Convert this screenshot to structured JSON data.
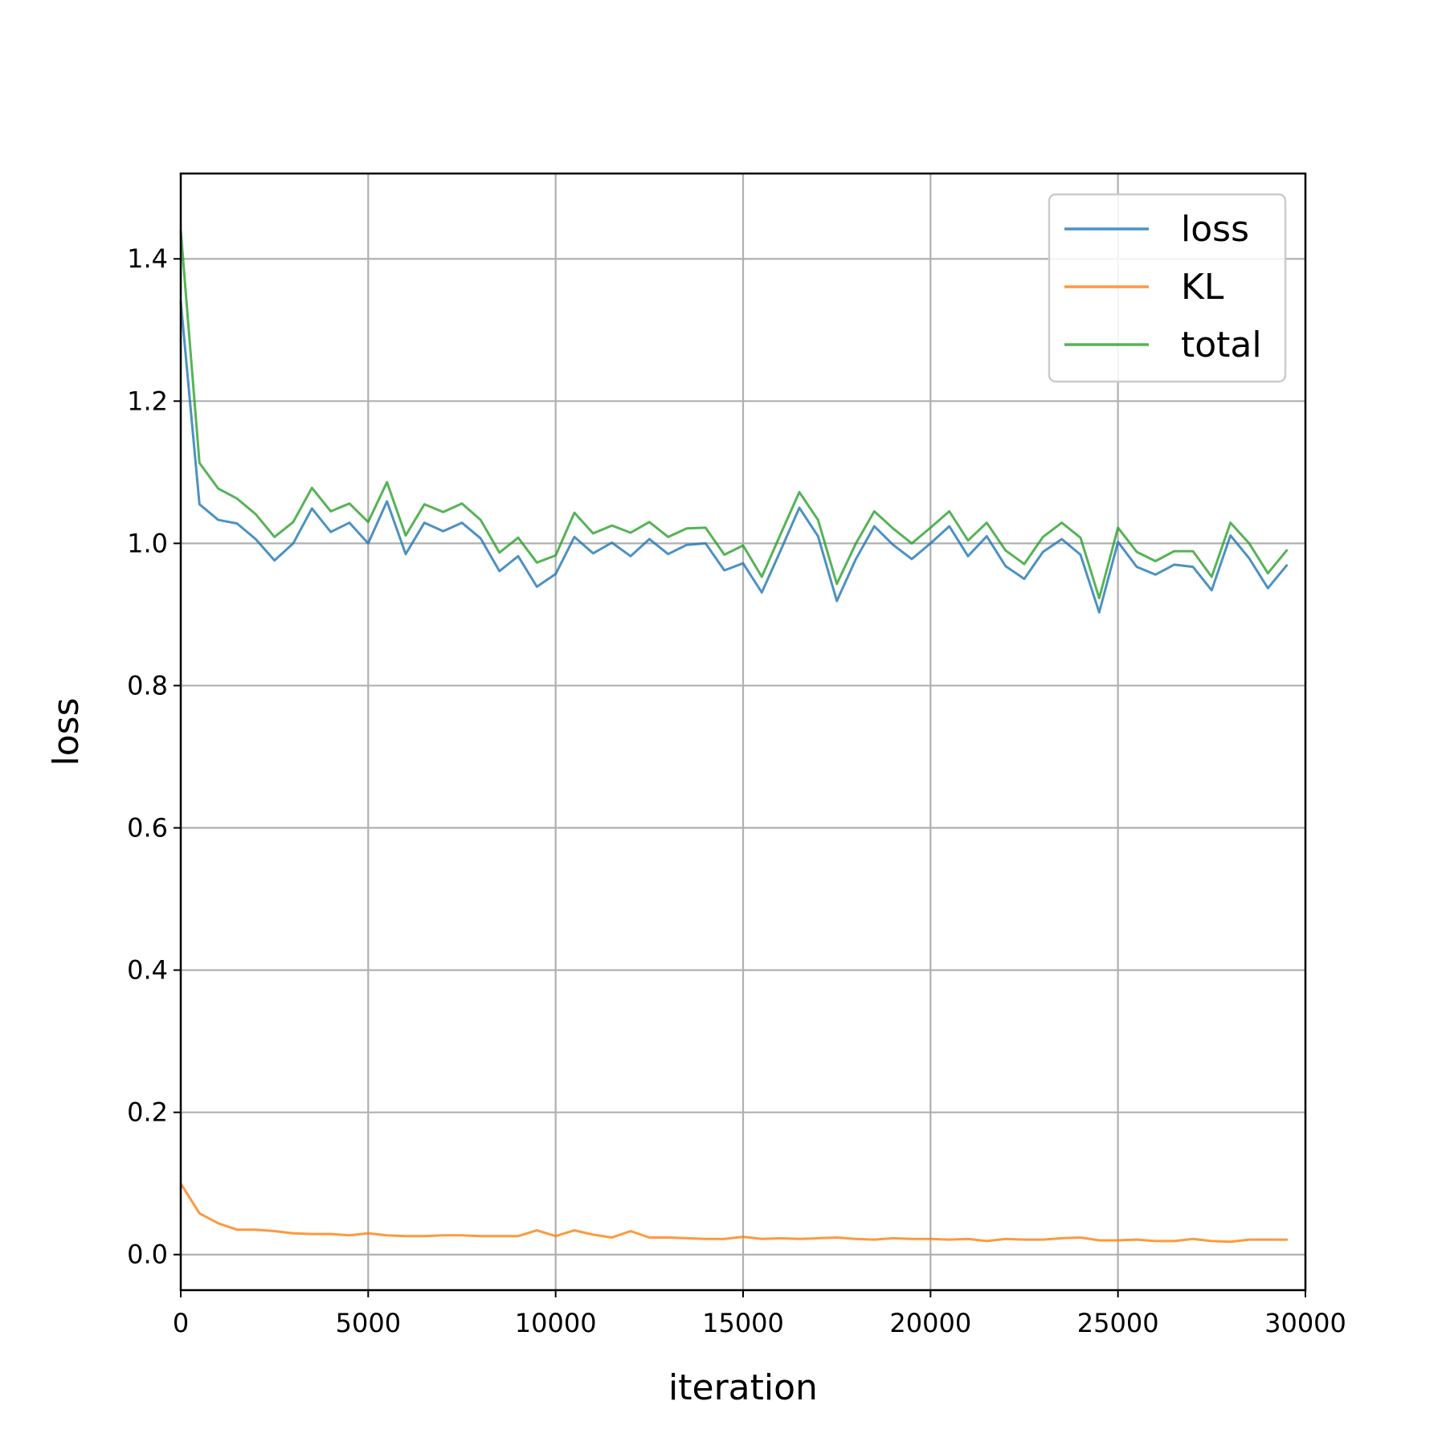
{
  "chart_data": {
    "type": "line",
    "title": "",
    "xlabel": "iteration",
    "ylabel": "loss",
    "xlim": [
      0,
      30000
    ],
    "ylim": [
      -0.05,
      1.52
    ],
    "xticks": [
      0,
      5000,
      10000,
      15000,
      20000,
      25000,
      30000
    ],
    "xtick_labels": [
      "0",
      "5000",
      "10000",
      "15000",
      "20000",
      "25000",
      "30000"
    ],
    "yticks": [
      0.0,
      0.2,
      0.4,
      0.6,
      0.8,
      1.0,
      1.2,
      1.4
    ],
    "ytick_labels": [
      "0.0",
      "0.2",
      "0.4",
      "0.6",
      "0.8",
      "1.0",
      "1.2",
      "1.4"
    ],
    "grid": true,
    "legend_position": "top-right",
    "x": [
      0,
      500,
      1000,
      1500,
      2000,
      2500,
      3000,
      3500,
      4000,
      4500,
      5000,
      5500,
      6000,
      6500,
      7000,
      7500,
      8000,
      8500,
      9000,
      9500,
      10000,
      10500,
      11000,
      11500,
      12000,
      12500,
      13000,
      13500,
      14000,
      14500,
      15000,
      15500,
      16000,
      16500,
      17000,
      17500,
      18000,
      18500,
      19000,
      19500,
      20000,
      20500,
      21000,
      21500,
      22000,
      22500,
      23000,
      23500,
      24000,
      24500,
      25000,
      25500,
      26000,
      26500,
      27000,
      27500,
      28000,
      28500,
      29000,
      29500
    ],
    "series": [
      {
        "name": "loss",
        "color": "#1f77b4",
        "values": [
          1.34,
          1.055,
          1.033,
          1.028,
          1.006,
          0.976,
          1.0,
          1.049,
          1.016,
          1.029,
          1.0,
          1.059,
          0.985,
          1.029,
          1.017,
          1.029,
          1.007,
          0.961,
          0.982,
          0.939,
          0.957,
          1.009,
          0.986,
          1.001,
          0.982,
          1.006,
          0.985,
          0.998,
          1.0,
          0.962,
          0.972,
          0.931,
          0.99,
          1.05,
          1.01,
          0.919,
          0.977,
          1.024,
          0.998,
          0.978,
          1.0,
          1.024,
          0.982,
          1.01,
          0.968,
          0.95,
          0.988,
          1.006,
          0.984,
          0.903,
          1.002,
          0.967,
          0.956,
          0.97,
          0.967,
          0.934,
          1.011,
          0.979,
          0.937,
          0.969
        ]
      },
      {
        "name": "KL",
        "color": "#ff7f0e",
        "values": [
          0.1,
          0.058,
          0.044,
          0.035,
          0.035,
          0.033,
          0.03,
          0.029,
          0.029,
          0.027,
          0.03,
          0.027,
          0.026,
          0.026,
          0.027,
          0.027,
          0.026,
          0.026,
          0.026,
          0.034,
          0.026,
          0.034,
          0.028,
          0.024,
          0.033,
          0.024,
          0.024,
          0.023,
          0.022,
          0.022,
          0.025,
          0.022,
          0.023,
          0.022,
          0.023,
          0.024,
          0.022,
          0.021,
          0.023,
          0.022,
          0.022,
          0.021,
          0.022,
          0.019,
          0.022,
          0.021,
          0.021,
          0.023,
          0.024,
          0.02,
          0.02,
          0.021,
          0.019,
          0.019,
          0.022,
          0.019,
          0.018,
          0.021,
          0.021,
          0.021
        ]
      },
      {
        "name": "total",
        "color": "#2ca02c",
        "values": [
          1.44,
          1.113,
          1.077,
          1.063,
          1.041,
          1.009,
          1.03,
          1.078,
          1.045,
          1.056,
          1.03,
          1.086,
          1.011,
          1.055,
          1.044,
          1.056,
          1.033,
          0.987,
          1.008,
          0.973,
          0.983,
          1.043,
          1.014,
          1.025,
          1.015,
          1.03,
          1.009,
          1.021,
          1.022,
          0.984,
          0.997,
          0.953,
          1.013,
          1.072,
          1.033,
          0.943,
          0.999,
          1.045,
          1.021,
          1.0,
          1.022,
          1.045,
          1.004,
          1.029,
          0.99,
          0.971,
          1.009,
          1.029,
          1.008,
          0.923,
          1.022,
          0.988,
          0.975,
          0.989,
          0.989,
          0.953,
          1.029,
          1.0,
          0.958,
          0.99
        ]
      }
    ]
  }
}
